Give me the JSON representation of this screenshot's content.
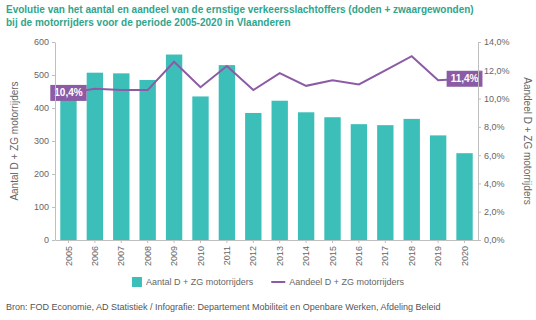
{
  "chart_data": {
    "type": "bar",
    "title": [
      "Evolutie van het aantal en aandeel van de ernstige verkeersslachtoffers (doden + zwaargewonden)",
      "bij de motorrijders voor de periode 2005-2020 in Vlaanderen"
    ],
    "source": "Bron: FOD Economie, AD Statistiek / Infografie: Departement Mobiliteit en Openbare Werken, Afdeling Beleid",
    "y_label": "Aantal D + ZG motorrijders",
    "y2_label": "Aandeel D + ZG motorrijders",
    "categories": [
      "2005",
      "2006",
      "2007",
      "2008",
      "2009",
      "2010",
      "2011",
      "2012",
      "2013",
      "2014",
      "2015",
      "2016",
      "2017",
      "2018",
      "2019",
      "2020"
    ],
    "series": [
      {
        "name": "Aantal D + ZG motorrijders",
        "type": "bar",
        "color": "#3cbfb9",
        "values": [
          465,
          507,
          505,
          485,
          562,
          435,
          530,
          385,
          422,
          387,
          372,
          351,
          348,
          367,
          317,
          263
        ]
      },
      {
        "name": "Aandeel D + ZG motorrijders",
        "type": "line",
        "axis": "y2",
        "color": "#8b5ca5",
        "data_labels": true,
        "values": [
          10.4,
          10.7,
          10.6,
          10.6,
          12.6,
          10.8,
          12.3,
          10.6,
          11.8,
          10.9,
          11.3,
          11.0,
          12.0,
          13.0,
          11.3,
          11.4
        ],
        "value_labels": [
          "10,4%",
          null,
          null,
          null,
          null,
          null,
          null,
          null,
          null,
          null,
          null,
          null,
          null,
          null,
          null,
          "11,4%"
        ]
      }
    ],
    "ylim": [
      0,
      600
    ],
    "yticks": [
      0,
      100,
      200,
      300,
      400,
      500,
      600
    ],
    "y2lim": [
      0,
      14
    ],
    "y2ticks": [
      {
        "value": 0,
        "label": "0,0%"
      },
      {
        "value": 2,
        "label": "2,0%"
      },
      {
        "value": 4,
        "label": "4,0%"
      },
      {
        "value": 6,
        "label": "6,0%"
      },
      {
        "value": 8,
        "label": "8,0%"
      },
      {
        "value": 10,
        "label": "10,0%"
      },
      {
        "value": 12,
        "label": "12,0%"
      },
      {
        "value": 14,
        "label": "14,0%"
      }
    ],
    "grid": false,
    "legend": "bottom"
  }
}
